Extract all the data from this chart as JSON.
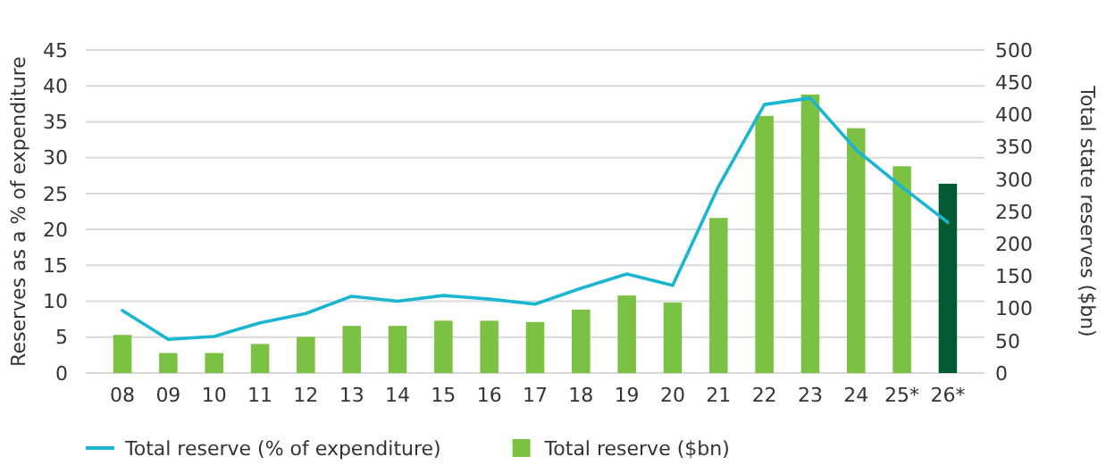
{
  "chart_data": {
    "type": "bar",
    "categories": [
      "08",
      "09",
      "10",
      "11",
      "12",
      "13",
      "14",
      "15",
      "16",
      "17",
      "18",
      "19",
      "20",
      "21",
      "22",
      "23",
      "24",
      "25*",
      "26*"
    ],
    "series": [
      {
        "name": "Total reserve (% of expenditure)",
        "type": "line",
        "color": "#1ab5d1",
        "values": [
          8.7,
          4.7,
          5.1,
          7.0,
          8.3,
          10.7,
          10.0,
          10.8,
          10.3,
          9.6,
          11.8,
          13.8,
          12.2,
          26,
          37.4,
          38.3,
          31.1,
          25.9,
          21
        ]
      },
      {
        "name": "Total reserve ($bn)",
        "axis": "y2",
        "color": "#7bc143",
        "colors": [
          "#7bc143",
          "#7bc143",
          "#7bc143",
          "#7bc143",
          "#7bc143",
          "#7bc143",
          "#7bc143",
          "#7bc143",
          "#7bc143",
          "#7bc143",
          "#7bc143",
          "#7bc143",
          "#7bc143",
          "#7bc143",
          "#7bc143",
          "#7bc143",
          "#7bc143",
          "#7bc143",
          "#005a32"
        ],
        "values": [
          59,
          31,
          31,
          45,
          56,
          73,
          73,
          81,
          81,
          79,
          98,
          120,
          109,
          240,
          398,
          431,
          379,
          320,
          293
        ]
      }
    ],
    "ylabel": "Reserves as a % of expenditure",
    "y2label": "Total state reserves ($bn)",
    "ylim": [
      0,
      45
    ],
    "yticks": [
      0,
      5,
      10,
      15,
      20,
      25,
      30,
      35,
      40,
      45
    ],
    "y2lim": [
      0,
      500
    ],
    "y2ticks": [
      0,
      50,
      100,
      150,
      200,
      250,
      300,
      350,
      400,
      450,
      500
    ],
    "grid": "y",
    "legend": "bottom left"
  }
}
